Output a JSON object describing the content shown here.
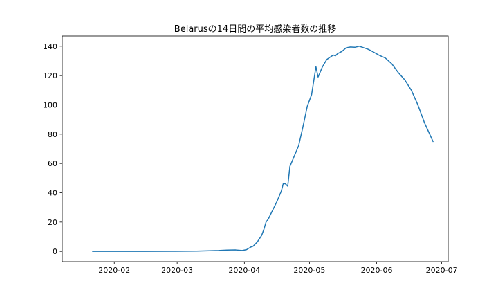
{
  "chart_data": {
    "type": "line",
    "title": "Belarusの14日間の平均感染者数の推移",
    "xlabel": "",
    "ylabel": "",
    "x_range": [
      "2020-01-08",
      "2020-07-04"
    ],
    "ylim": [
      -7,
      147
    ],
    "grid": false,
    "line_color": "#1f77b4",
    "x_ticks": [
      {
        "date": "2020-02-01",
        "label": "2020-02"
      },
      {
        "date": "2020-03-01",
        "label": "2020-03"
      },
      {
        "date": "2020-04-01",
        "label": "2020-04"
      },
      {
        "date": "2020-05-01",
        "label": "2020-05"
      },
      {
        "date": "2020-06-01",
        "label": "2020-06"
      },
      {
        "date": "2020-07-01",
        "label": "2020-07"
      }
    ],
    "y_ticks": [
      0,
      20,
      40,
      60,
      80,
      100,
      120,
      140
    ],
    "series": [
      {
        "name": "",
        "points": [
          [
            "2020-01-22",
            0
          ],
          [
            "2020-02-01",
            0
          ],
          [
            "2020-02-15",
            0
          ],
          [
            "2020-02-28",
            0.1
          ],
          [
            "2020-03-10",
            0.2
          ],
          [
            "2020-03-20",
            0.6
          ],
          [
            "2020-03-24",
            0.9
          ],
          [
            "2020-03-28",
            1.0
          ],
          [
            "2020-03-31",
            0.6
          ],
          [
            "2020-04-02",
            1.2
          ],
          [
            "2020-04-04",
            3.0
          ],
          [
            "2020-04-05",
            3.5
          ],
          [
            "2020-04-07",
            6.5
          ],
          [
            "2020-04-09",
            11
          ],
          [
            "2020-04-10",
            15
          ],
          [
            "2020-04-11",
            20
          ],
          [
            "2020-04-12",
            22
          ],
          [
            "2020-04-14",
            28
          ],
          [
            "2020-04-16",
            34
          ],
          [
            "2020-04-18",
            41
          ],
          [
            "2020-04-19",
            46.5
          ],
          [
            "2020-04-20",
            46
          ],
          [
            "2020-04-21",
            44.5
          ],
          [
            "2020-04-22",
            58
          ],
          [
            "2020-04-24",
            65
          ],
          [
            "2020-04-26",
            72
          ],
          [
            "2020-04-28",
            85
          ],
          [
            "2020-04-30",
            99
          ],
          [
            "2020-05-02",
            107
          ],
          [
            "2020-05-04",
            126
          ],
          [
            "2020-05-05",
            119
          ],
          [
            "2020-05-07",
            126
          ],
          [
            "2020-05-09",
            131
          ],
          [
            "2020-05-11",
            133
          ],
          [
            "2020-05-12",
            134
          ],
          [
            "2020-05-13",
            133.5
          ],
          [
            "2020-05-14",
            135
          ],
          [
            "2020-05-16",
            136.5
          ],
          [
            "2020-05-18",
            139
          ],
          [
            "2020-05-20",
            139.5
          ],
          [
            "2020-05-22",
            139.3
          ],
          [
            "2020-05-24",
            140
          ],
          [
            "2020-05-26",
            139
          ],
          [
            "2020-05-28",
            138
          ],
          [
            "2020-05-30",
            136.5
          ],
          [
            "2020-06-02",
            134
          ],
          [
            "2020-06-05",
            132
          ],
          [
            "2020-06-08",
            128
          ],
          [
            "2020-06-11",
            122
          ],
          [
            "2020-06-14",
            117
          ],
          [
            "2020-06-17",
            110
          ],
          [
            "2020-06-20",
            100
          ],
          [
            "2020-06-23",
            88
          ],
          [
            "2020-06-27",
            75
          ]
        ]
      }
    ]
  }
}
